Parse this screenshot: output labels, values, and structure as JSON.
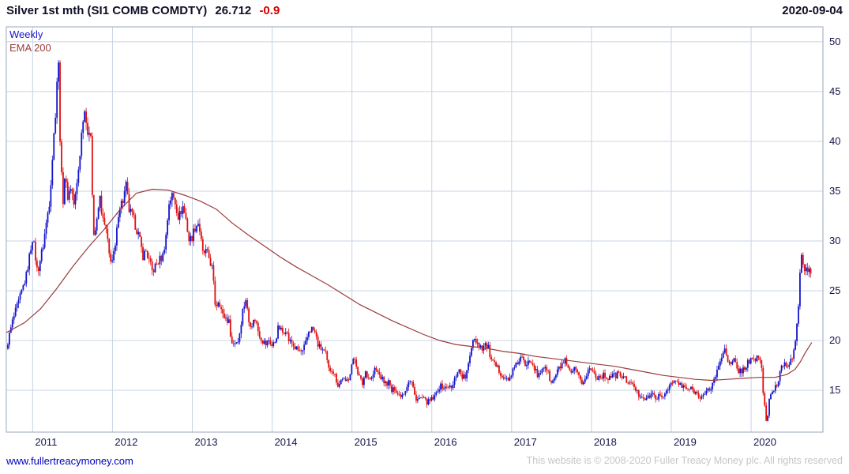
{
  "header": {
    "title": "Silver 1st mth (SI1 COMB COMDTY)",
    "last_price": "26.712",
    "change": "-0.9",
    "date": "2020-09-04"
  },
  "legend": {
    "series_label": "Weekly",
    "ema_label": "EMA 200"
  },
  "footer": {
    "link": "www.fullertreacymoney.com",
    "copyright": "This website is © 2008-2020 Fuller Treacy Money plc. All rights reserved"
  },
  "colors": {
    "up": "#1414cc",
    "down": "#e01010",
    "ema": "#9a3b3b",
    "grid": "#c8d4e4",
    "border": "#9aa7b8",
    "axis_text": "#14144a"
  },
  "chart_data": {
    "type": "candlestick-weekly",
    "title": "Silver 1st mth (SI1 COMB COMDTY)",
    "legend": [
      "Weekly",
      "EMA 200"
    ],
    "x_range": [
      2010.67,
      2020.9
    ],
    "y_range": [
      10.8,
      51.5
    ],
    "y_ticks": [
      15,
      20,
      25,
      30,
      35,
      40,
      45,
      50
    ],
    "x_ticks": [
      2011,
      2012,
      2013,
      2014,
      2015,
      2016,
      2017,
      2018,
      2019,
      2020
    ],
    "last_close": 26.712,
    "close_anchors": [
      [
        2010.67,
        19.2
      ],
      [
        2010.75,
        22.0
      ],
      [
        2010.83,
        24.0
      ],
      [
        2010.92,
        26.5
      ],
      [
        2011.0,
        30.5
      ],
      [
        2011.06,
        26.8
      ],
      [
        2011.13,
        29.5
      ],
      [
        2011.21,
        34.0
      ],
      [
        2011.29,
        43.5
      ],
      [
        2011.32,
        49.0
      ],
      [
        2011.35,
        38.0
      ],
      [
        2011.38,
        34.0
      ],
      [
        2011.4,
        36.5
      ],
      [
        2011.44,
        34.5
      ],
      [
        2011.48,
        35.5
      ],
      [
        2011.52,
        33.5
      ],
      [
        2011.56,
        36.0
      ],
      [
        2011.6,
        39.5
      ],
      [
        2011.63,
        42.5
      ],
      [
        2011.66,
        43.3
      ],
      [
        2011.7,
        40.0
      ],
      [
        2011.73,
        41.0
      ],
      [
        2011.76,
        30.5
      ],
      [
        2011.8,
        31.5
      ],
      [
        2011.84,
        34.5
      ],
      [
        2011.88,
        32.0
      ],
      [
        2011.92,
        31.0
      ],
      [
        2011.96,
        28.5
      ],
      [
        2012.0,
        28.0
      ],
      [
        2012.04,
        29.5
      ],
      [
        2012.08,
        33.5
      ],
      [
        2012.13,
        34.0
      ],
      [
        2012.17,
        35.5
      ],
      [
        2012.21,
        33.0
      ],
      [
        2012.25,
        32.5
      ],
      [
        2012.29,
        31.5
      ],
      [
        2012.33,
        30.5
      ],
      [
        2012.38,
        28.5
      ],
      [
        2012.42,
        29.0
      ],
      [
        2012.46,
        28.0
      ],
      [
        2012.5,
        26.9
      ],
      [
        2012.54,
        27.5
      ],
      [
        2012.58,
        28.0
      ],
      [
        2012.63,
        28.5
      ],
      [
        2012.67,
        30.5
      ],
      [
        2012.71,
        34.0
      ],
      [
        2012.75,
        34.6
      ],
      [
        2012.79,
        33.8
      ],
      [
        2012.83,
        32.3
      ],
      [
        2012.88,
        33.5
      ],
      [
        2012.92,
        32.2
      ],
      [
        2012.96,
        30.0
      ],
      [
        2013.0,
        30.5
      ],
      [
        2013.04,
        31.5
      ],
      [
        2013.08,
        31.9
      ],
      [
        2013.13,
        28.7
      ],
      [
        2013.17,
        28.9
      ],
      [
        2013.21,
        28.3
      ],
      [
        2013.25,
        27.2
      ],
      [
        2013.29,
        23.3
      ],
      [
        2013.33,
        24.2
      ],
      [
        2013.38,
        22.5
      ],
      [
        2013.42,
        22.3
      ],
      [
        2013.46,
        21.8
      ],
      [
        2013.5,
        19.5
      ],
      [
        2013.54,
        19.9
      ],
      [
        2013.58,
        20.0
      ],
      [
        2013.63,
        23.0
      ],
      [
        2013.67,
        24.2
      ],
      [
        2013.71,
        21.8
      ],
      [
        2013.75,
        21.7
      ],
      [
        2013.79,
        22.2
      ],
      [
        2013.83,
        20.8
      ],
      [
        2013.88,
        20.0
      ],
      [
        2013.92,
        19.6
      ],
      [
        2013.96,
        20.1
      ],
      [
        2014.0,
        19.4
      ],
      [
        2014.04,
        20.0
      ],
      [
        2014.08,
        21.4
      ],
      [
        2014.13,
        20.8
      ],
      [
        2014.17,
        21.2
      ],
      [
        2014.21,
        20.0
      ],
      [
        2014.25,
        19.7
      ],
      [
        2014.29,
        19.2
      ],
      [
        2014.33,
        19.0
      ],
      [
        2014.38,
        18.8
      ],
      [
        2014.42,
        19.7
      ],
      [
        2014.46,
        21.0
      ],
      [
        2014.5,
        21.2
      ],
      [
        2014.54,
        20.7
      ],
      [
        2014.58,
        19.4
      ],
      [
        2014.63,
        19.1
      ],
      [
        2014.67,
        18.6
      ],
      [
        2014.71,
        17.0
      ],
      [
        2014.75,
        17.2
      ],
      [
        2014.79,
        16.4
      ],
      [
        2014.83,
        15.4
      ],
      [
        2014.88,
        16.3
      ],
      [
        2014.92,
        15.7
      ],
      [
        2014.96,
        16.3
      ],
      [
        2015.0,
        17.7
      ],
      [
        2015.04,
        18.2
      ],
      [
        2015.08,
        16.6
      ],
      [
        2015.13,
        15.6
      ],
      [
        2015.17,
        16.9
      ],
      [
        2015.21,
        16.3
      ],
      [
        2015.25,
        16.2
      ],
      [
        2015.29,
        17.2
      ],
      [
        2015.33,
        16.7
      ],
      [
        2015.38,
        16.1
      ],
      [
        2015.42,
        15.7
      ],
      [
        2015.46,
        15.8
      ],
      [
        2015.5,
        14.8
      ],
      [
        2015.54,
        15.3
      ],
      [
        2015.58,
        14.5
      ],
      [
        2015.63,
        14.6
      ],
      [
        2015.67,
        15.1
      ],
      [
        2015.71,
        16.0
      ],
      [
        2015.75,
        15.8
      ],
      [
        2015.79,
        14.3
      ],
      [
        2015.83,
        14.1
      ],
      [
        2015.88,
        14.2
      ],
      [
        2015.92,
        13.9
      ],
      [
        2015.96,
        13.8
      ],
      [
        2016.0,
        14.1
      ],
      [
        2016.04,
        14.3
      ],
      [
        2016.08,
        15.3
      ],
      [
        2016.13,
        15.4
      ],
      [
        2016.17,
        15.2
      ],
      [
        2016.21,
        15.5
      ],
      [
        2016.25,
        15.1
      ],
      [
        2016.29,
        16.2
      ],
      [
        2016.33,
        17.2
      ],
      [
        2016.38,
        16.4
      ],
      [
        2016.42,
        16.3
      ],
      [
        2016.46,
        17.5
      ],
      [
        2016.5,
        19.6
      ],
      [
        2016.52,
        20.4
      ],
      [
        2016.54,
        20.2
      ],
      [
        2016.58,
        19.7
      ],
      [
        2016.63,
        19.3
      ],
      [
        2016.67,
        19.6
      ],
      [
        2016.71,
        19.2
      ],
      [
        2016.75,
        17.8
      ],
      [
        2016.79,
        17.5
      ],
      [
        2016.83,
        17.1
      ],
      [
        2016.88,
        16.6
      ],
      [
        2016.92,
        16.2
      ],
      [
        2016.96,
        15.9
      ],
      [
        2017.0,
        16.8
      ],
      [
        2017.04,
        17.2
      ],
      [
        2017.08,
        17.9
      ],
      [
        2017.13,
        18.3
      ],
      [
        2017.17,
        17.3
      ],
      [
        2017.21,
        18.2
      ],
      [
        2017.25,
        18.0
      ],
      [
        2017.29,
        17.2
      ],
      [
        2017.33,
        16.2
      ],
      [
        2017.38,
        17.2
      ],
      [
        2017.42,
        17.5
      ],
      [
        2017.46,
        16.6
      ],
      [
        2017.5,
        15.6
      ],
      [
        2017.54,
        16.3
      ],
      [
        2017.58,
        17.0
      ],
      [
        2017.63,
        17.6
      ],
      [
        2017.67,
        17.9
      ],
      [
        2017.71,
        16.9
      ],
      [
        2017.75,
        16.7
      ],
      [
        2017.79,
        17.1
      ],
      [
        2017.83,
        16.4
      ],
      [
        2017.88,
        15.8
      ],
      [
        2017.92,
        16.1
      ],
      [
        2017.96,
        17.0
      ],
      [
        2018.0,
        17.2
      ],
      [
        2018.04,
        16.6
      ],
      [
        2018.08,
        16.3
      ],
      [
        2018.13,
        16.5
      ],
      [
        2018.17,
        16.4
      ],
      [
        2018.21,
        16.3
      ],
      [
        2018.25,
        16.5
      ],
      [
        2018.29,
        16.4
      ],
      [
        2018.33,
        16.7
      ],
      [
        2018.38,
        16.4
      ],
      [
        2018.42,
        16.1
      ],
      [
        2018.46,
        15.9
      ],
      [
        2018.5,
        15.5
      ],
      [
        2018.54,
        15.4
      ],
      [
        2018.58,
        14.6
      ],
      [
        2018.63,
        14.5
      ],
      [
        2018.67,
        14.2
      ],
      [
        2018.71,
        14.2
      ],
      [
        2018.75,
        14.7
      ],
      [
        2018.79,
        14.3
      ],
      [
        2018.83,
        14.4
      ],
      [
        2018.88,
        14.2
      ],
      [
        2018.92,
        14.7
      ],
      [
        2018.96,
        15.4
      ],
      [
        2019.0,
        15.6
      ],
      [
        2019.04,
        15.9
      ],
      [
        2019.08,
        15.8
      ],
      [
        2019.13,
        15.3
      ],
      [
        2019.17,
        15.3
      ],
      [
        2019.21,
        15.1
      ],
      [
        2019.25,
        15.1
      ],
      [
        2019.29,
        14.9
      ],
      [
        2019.33,
        14.6
      ],
      [
        2019.38,
        14.4
      ],
      [
        2019.42,
        14.5
      ],
      [
        2019.46,
        15.0
      ],
      [
        2019.5,
        15.3
      ],
      [
        2019.54,
        16.2
      ],
      [
        2019.58,
        17.0
      ],
      [
        2019.63,
        18.4
      ],
      [
        2019.67,
        19.4
      ],
      [
        2019.69,
        18.8
      ],
      [
        2019.71,
        17.6
      ],
      [
        2019.75,
        17.6
      ],
      [
        2019.79,
        18.0
      ],
      [
        2019.83,
        17.0
      ],
      [
        2019.88,
        17.0
      ],
      [
        2019.92,
        17.2
      ],
      [
        2019.96,
        17.9
      ],
      [
        2020.0,
        18.0
      ],
      [
        2020.04,
        17.9
      ],
      [
        2020.08,
        18.6
      ],
      [
        2020.13,
        17.5
      ],
      [
        2020.15,
        14.8
      ],
      [
        2020.19,
        12.0
      ],
      [
        2020.21,
        12.6
      ],
      [
        2020.23,
        14.1
      ],
      [
        2020.25,
        14.4
      ],
      [
        2020.29,
        15.2
      ],
      [
        2020.33,
        15.6
      ],
      [
        2020.38,
        17.5
      ],
      [
        2020.42,
        17.8
      ],
      [
        2020.46,
        17.6
      ],
      [
        2020.5,
        18.0
      ],
      [
        2020.52,
        18.3
      ],
      [
        2020.54,
        19.0
      ],
      [
        2020.56,
        19.8
      ],
      [
        2020.58,
        22.8
      ],
      [
        2020.6,
        24.3
      ],
      [
        2020.62,
        28.3
      ],
      [
        2020.64,
        29.1
      ],
      [
        2020.66,
        26.2
      ],
      [
        2020.68,
        26.9
      ],
      [
        2020.7,
        27.7
      ],
      [
        2020.72,
        26.5
      ],
      [
        2020.74,
        27.3
      ],
      [
        2020.76,
        26.712
      ]
    ],
    "ema_anchors": [
      [
        2010.67,
        20.8
      ],
      [
        2010.9,
        21.8
      ],
      [
        2011.1,
        23.2
      ],
      [
        2011.3,
        25.2
      ],
      [
        2011.5,
        27.4
      ],
      [
        2011.7,
        29.4
      ],
      [
        2011.9,
        31.2
      ],
      [
        2012.1,
        33.2
      ],
      [
        2012.3,
        34.8
      ],
      [
        2012.5,
        35.2
      ],
      [
        2012.7,
        35.1
      ],
      [
        2012.9,
        34.6
      ],
      [
        2013.1,
        34.0
      ],
      [
        2013.3,
        33.2
      ],
      [
        2013.5,
        31.8
      ],
      [
        2013.7,
        30.6
      ],
      [
        2013.9,
        29.5
      ],
      [
        2014.1,
        28.4
      ],
      [
        2014.3,
        27.4
      ],
      [
        2014.5,
        26.5
      ],
      [
        2014.7,
        25.6
      ],
      [
        2014.9,
        24.6
      ],
      [
        2015.1,
        23.6
      ],
      [
        2015.3,
        22.8
      ],
      [
        2015.5,
        22.0
      ],
      [
        2015.7,
        21.3
      ],
      [
        2015.9,
        20.6
      ],
      [
        2016.1,
        20.0
      ],
      [
        2016.3,
        19.6
      ],
      [
        2016.5,
        19.4
      ],
      [
        2016.7,
        19.2
      ],
      [
        2016.9,
        18.9
      ],
      [
        2017.1,
        18.7
      ],
      [
        2017.3,
        18.4
      ],
      [
        2017.5,
        18.2
      ],
      [
        2017.7,
        18.0
      ],
      [
        2017.9,
        17.8
      ],
      [
        2018.1,
        17.6
      ],
      [
        2018.3,
        17.4
      ],
      [
        2018.5,
        17.1
      ],
      [
        2018.7,
        16.8
      ],
      [
        2018.9,
        16.5
      ],
      [
        2019.1,
        16.3
      ],
      [
        2019.3,
        16.1
      ],
      [
        2019.5,
        16.0
      ],
      [
        2019.7,
        16.1
      ],
      [
        2019.9,
        16.2
      ],
      [
        2020.1,
        16.3
      ],
      [
        2020.3,
        16.3
      ],
      [
        2020.45,
        16.6
      ],
      [
        2020.55,
        17.1
      ],
      [
        2020.62,
        17.9
      ],
      [
        2020.68,
        18.8
      ],
      [
        2020.76,
        19.8
      ]
    ]
  }
}
